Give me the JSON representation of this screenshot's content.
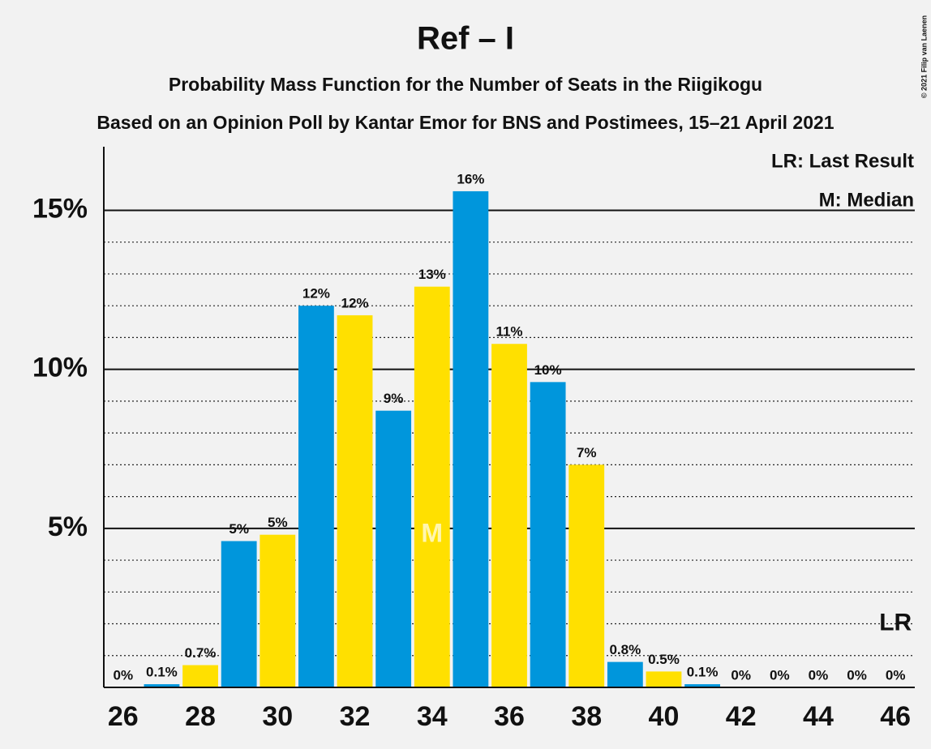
{
  "chart_data": {
    "type": "bar",
    "title": "Ref – I",
    "subtitle": "Probability Mass Function for the Number of Seats in the Riigikogu",
    "subtitle2": "Based on an Opinion Poll by Kantar Emor for BNS and Postimees, 15–21 April 2021",
    "copyright": "© 2021 Filip van Laenen",
    "legend": [
      "LR: Last Result",
      "M: Median"
    ],
    "x": [
      26,
      27,
      28,
      29,
      30,
      31,
      32,
      33,
      34,
      35,
      36,
      37,
      38,
      39,
      40,
      41,
      42,
      43,
      44,
      45,
      46
    ],
    "values": [
      0,
      0.1,
      0.7,
      4.6,
      4.8,
      12.0,
      11.7,
      8.7,
      12.6,
      15.6,
      10.8,
      9.6,
      7.0,
      0.8,
      0.5,
      0.1,
      0,
      0,
      0,
      0,
      0
    ],
    "value_labels": [
      "0%",
      "0.1%",
      "0.7%",
      "5%",
      "5%",
      "12%",
      "12%",
      "9%",
      "13%",
      "16%",
      "11%",
      "10%",
      "7%",
      "0.8%",
      "0.5%",
      "0.1%",
      "0%",
      "0%",
      "0%",
      "0%",
      "0%"
    ],
    "bar_colors": [
      "#0096dc",
      "#0096dc",
      "#ffe000",
      "#0096dc",
      "#ffe000",
      "#0096dc",
      "#ffe000",
      "#0096dc",
      "#ffe000",
      "#0096dc",
      "#ffe000",
      "#0096dc",
      "#ffe000",
      "#0096dc",
      "#ffe000",
      "#0096dc",
      "#ffe000",
      "#0096dc",
      "#ffe000",
      "#0096dc",
      "#ffe000"
    ],
    "median": 34,
    "median_label": "M",
    "last_result": 46,
    "last_result_label": "LR",
    "xlim": [
      25.5,
      46.5
    ],
    "xticks": [
      26,
      28,
      30,
      32,
      34,
      36,
      38,
      40,
      42,
      44,
      46
    ],
    "ylim": [
      0,
      17
    ],
    "yticks": [
      {
        "value": 5,
        "label": "5%"
      },
      {
        "value": 10,
        "label": "10%"
      },
      {
        "value": 15,
        "label": "15%"
      }
    ],
    "yminorticks": [
      1,
      2,
      3,
      4,
      6,
      7,
      8,
      9,
      11,
      12,
      13,
      14
    ],
    "grid": true
  }
}
